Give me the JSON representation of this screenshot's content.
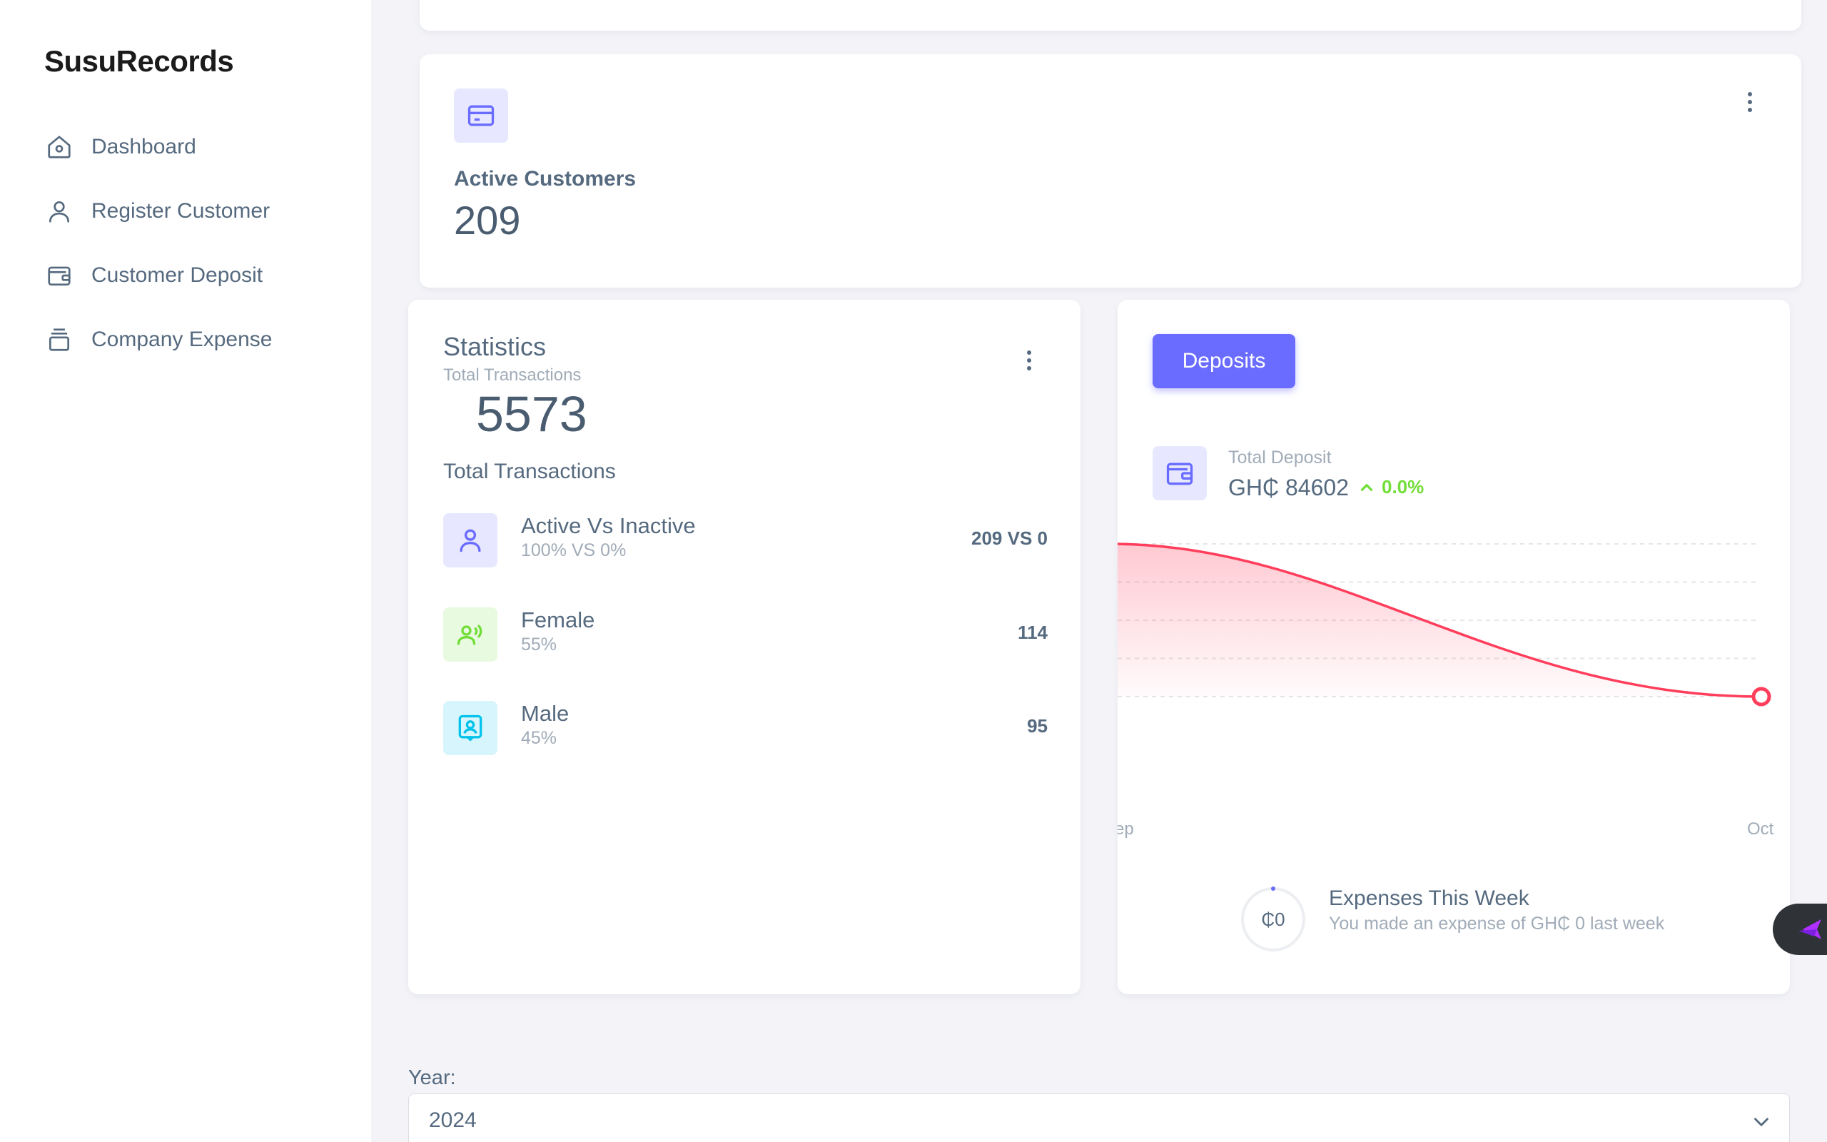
{
  "app": {
    "brand": "SusuRecords"
  },
  "sidebar": {
    "items": [
      {
        "label": "Dashboard",
        "icon": "home-icon"
      },
      {
        "label": "Register Customer",
        "icon": "user-icon"
      },
      {
        "label": "Customer Deposit",
        "icon": "wallet-icon"
      },
      {
        "label": "Company Expense",
        "icon": "stack-icon"
      }
    ]
  },
  "active_customers": {
    "title": "Active Customers",
    "value": "209",
    "icon": "credit-card-icon"
  },
  "statistics": {
    "title": "Statistics",
    "subtitle": "Total Transactions",
    "total": "5573",
    "caption": "Total Transactions",
    "rows": [
      {
        "name": "Active Vs Inactive",
        "sub": "100% VS 0%",
        "value": "209 VS 0",
        "icon": "user-icon",
        "color": "#696cff"
      },
      {
        "name": "Female",
        "sub": "55%",
        "value": "114",
        "icon": "users-voice-icon",
        "color": "#71dd37"
      },
      {
        "name": "Male",
        "sub": "45%",
        "value": "95",
        "icon": "id-badge-icon",
        "color": "#03c3ec"
      }
    ]
  },
  "deposits": {
    "button_label": "Deposits",
    "label": "Total Deposit",
    "value": "GH₵ 84602",
    "change": "0.0%",
    "icon": "wallet-icon",
    "accent": "#ff3e5c"
  },
  "chart_data": {
    "type": "area",
    "categories": [
      "Sep",
      "Oct"
    ],
    "series": [
      {
        "values": [
          1,
          0
        ]
      }
    ],
    "xtick_labels": [
      "ep",
      "Oct"
    ]
  },
  "expenses": {
    "ring_text": "₵0",
    "title": "Expenses This Week",
    "subtitle": "You made an expense of GH₵ 0 last week"
  },
  "filter": {
    "year_label": "Year:",
    "year_value": "2024"
  },
  "colors": {
    "primary": "#696cff",
    "success": "#71dd37",
    "info": "#03c3ec",
    "danger": "#ff3e5c"
  }
}
